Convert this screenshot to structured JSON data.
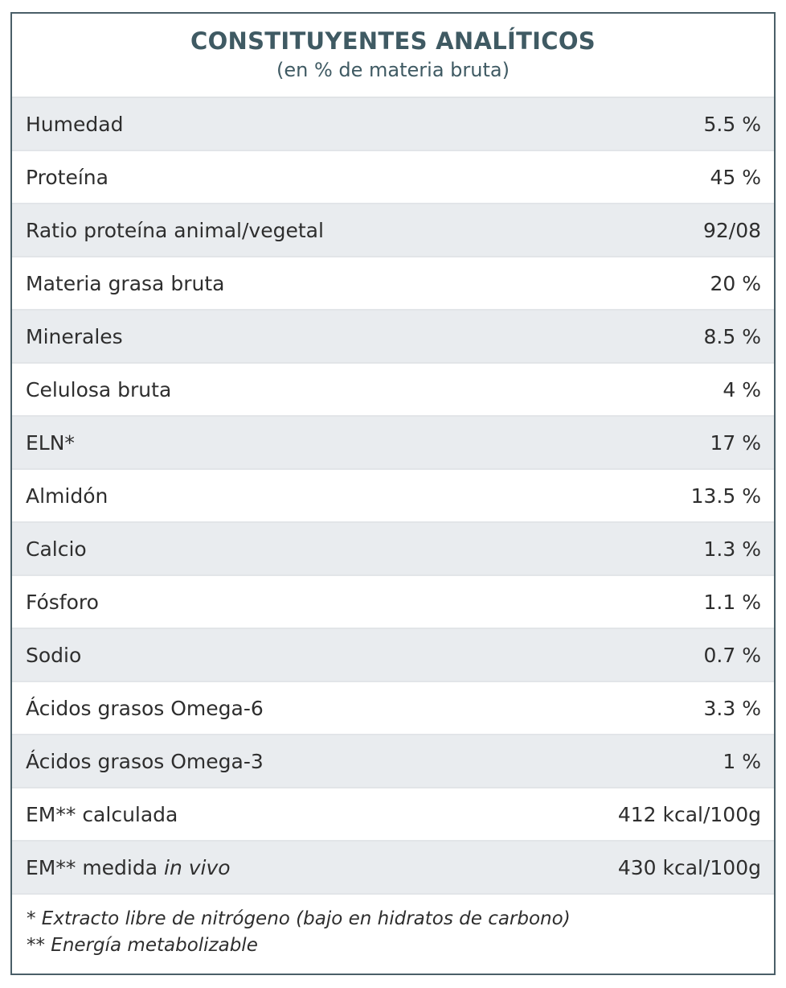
{
  "header": {
    "title": "CONSTITUYENTES ANALÍTICOS",
    "subtitle": "(en % de materia bruta)"
  },
  "rows": [
    {
      "label": "Humedad",
      "value": "5.5 %"
    },
    {
      "label": "Proteína",
      "value": "45 %"
    },
    {
      "label": "Ratio proteína animal/vegetal",
      "value": "92/08"
    },
    {
      "label": "Materia grasa bruta",
      "value": "20 %"
    },
    {
      "label": "Minerales",
      "value": "8.5 %"
    },
    {
      "label": "Celulosa bruta",
      "value": "4 %"
    },
    {
      "label": "ELN*",
      "value": "17 %"
    },
    {
      "label": "Almidón",
      "value": "13.5 %"
    },
    {
      "label": "Calcio",
      "value": "1.3 %"
    },
    {
      "label": "Fósforo",
      "value": "1.1 %"
    },
    {
      "label": "Sodio",
      "value": "0.7 %"
    },
    {
      "label": "Ácidos grasos Omega-6",
      "value": "3.3 %"
    },
    {
      "label": "Ácidos grasos Omega-3",
      "value": "1 %"
    },
    {
      "label": "EM** calculada",
      "value": "412 kcal/100g"
    },
    {
      "label": "EM** medida ",
      "label_italic": "in vivo",
      "value": "430 kcal/100g"
    }
  ],
  "footer": {
    "note1": "* Extracto libre de nitrógeno (bajo en hidratos de carbono)",
    "note2": "** Energía metabolizable"
  }
}
